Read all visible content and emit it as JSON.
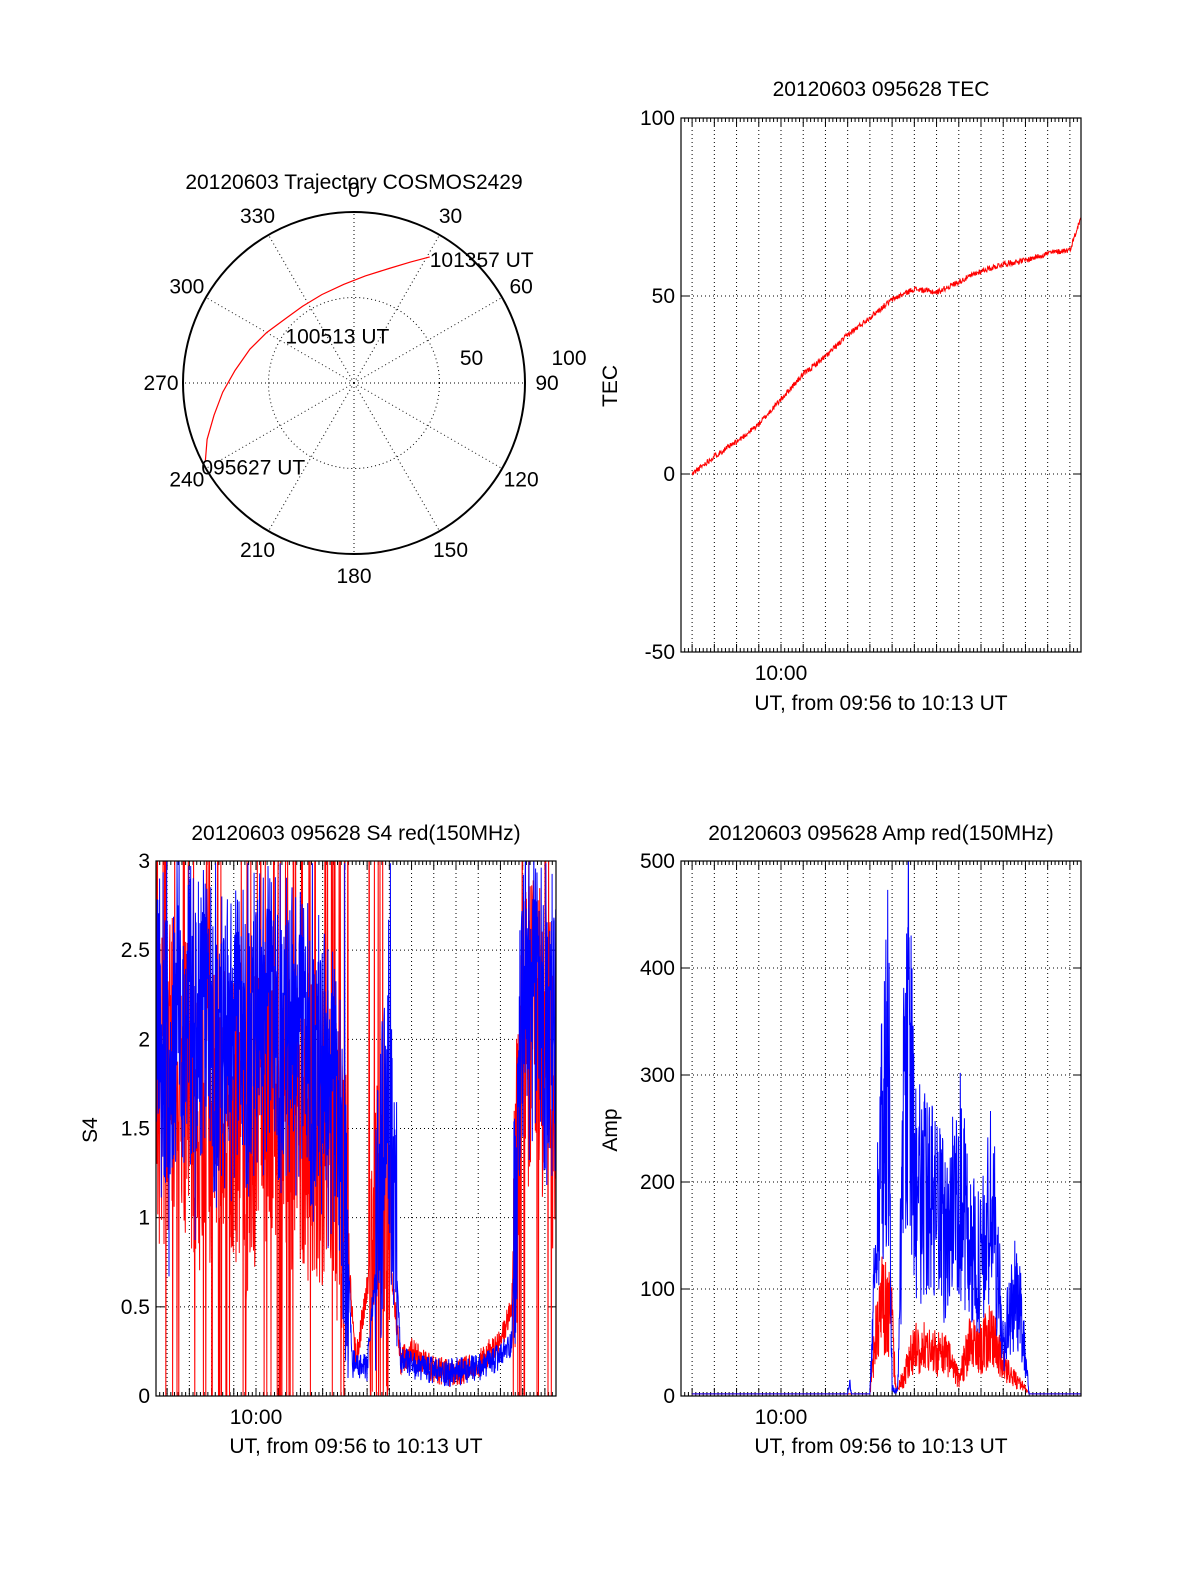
{
  "colors": {
    "red": "#ff0000",
    "blue": "#0000ff",
    "axes": "#000000"
  },
  "chart_data": [
    {
      "id": "trajectory",
      "type": "scatter",
      "subtype": "polar",
      "title": "20120603 Trajectory COSMOS2429",
      "azimuth_labels": [
        "0",
        "30",
        "60",
        "90",
        "120",
        "150",
        "180",
        "210",
        "240",
        "270",
        "300",
        "330"
      ],
      "radial_labels": [
        "50",
        "100"
      ],
      "grid": true,
      "series": [
        {
          "color": "#ff0000",
          "azimuth_deg": [
            242.5,
            249,
            257,
            266,
            276,
            288,
            300,
            313,
            326,
            340,
            354,
            6,
            17,
            25,
            31
          ],
          "zenith_deg": [
            98,
            92,
            84,
            77,
            70,
            64,
            59,
            55,
            54,
            55,
            58,
            63,
            70,
            78,
            86
          ]
        }
      ],
      "annotations": [
        {
          "text": "101357 UT",
          "azimuth_deg": 31,
          "zenith_deg": 86
        },
        {
          "text": "100513 UT",
          "azimuth_deg": 345,
          "zenith_deg": 42
        },
        {
          "text": "095627 UT",
          "azimuth_deg": 242.5,
          "zenith_deg": 98
        }
      ]
    },
    {
      "id": "tec",
      "type": "line",
      "title": "20120603 095628 TEC",
      "xlabel": "UT, from 09:56 to 10:13 UT",
      "ylabel": "TEC",
      "xlim": [
        "09:55:30",
        "10:13:30"
      ],
      "ylim": [
        -50,
        100
      ],
      "yticks": [
        -50,
        0,
        50,
        100
      ],
      "xtick_labels": [
        {
          "t": "10:00",
          "label": "10:00"
        }
      ],
      "grid": true,
      "series": [
        {
          "color": "#ff0000",
          "x": [
            "09:56:00",
            "09:57:00",
            "09:58:00",
            "09:59:00",
            "10:00:00",
            "10:01:00",
            "10:02:00",
            "10:03:00",
            "10:04:00",
            "10:05:00",
            "10:06:00",
            "10:07:00",
            "10:08:00",
            "10:09:00",
            "10:10:00",
            "10:11:00",
            "10:12:00",
            "10:13:00",
            "10:13:30"
          ],
          "y": [
            0,
            5,
            9,
            14,
            21,
            28,
            33,
            39,
            44,
            49,
            52,
            51,
            54,
            57,
            59,
            60,
            62,
            63,
            72
          ]
        }
      ]
    },
    {
      "id": "s4",
      "type": "line",
      "title": "20120603 095628 S4 red(150MHz)",
      "xlabel": "UT, from 09:56 to 10:13 UT",
      "ylabel": "S4",
      "xlim": [
        "09:55:30",
        "10:13:30"
      ],
      "ylim": [
        0,
        3
      ],
      "yticks": [
        0,
        0.5,
        1,
        1.5,
        2,
        2.5,
        3
      ],
      "ytick_labels": [
        "0",
        "0.5",
        "1",
        "1.5",
        "2",
        "2.5",
        "3"
      ],
      "xtick_labels": [
        {
          "t": "10:00",
          "label": "10:00"
        }
      ],
      "grid": true,
      "series": [
        {
          "color": "#ff0000",
          "x": [
            "09:55:30",
            "09:56:30",
            "09:57:30",
            "09:58:30",
            "09:59:30",
            "10:00:30",
            "10:01:30",
            "10:02:30",
            "10:03:30",
            "10:04:00",
            "10:04:30",
            "10:05:00",
            "10:05:30",
            "10:06:00",
            "10:06:30",
            "10:07:00",
            "10:08:00",
            "10:09:00",
            "10:10:00",
            "10:11:00",
            "10:11:30",
            "10:12:00",
            "10:13:00",
            "10:13:30"
          ],
          "y": [
            1.6,
            1.9,
            1.5,
            1.8,
            1.4,
            1.7,
            1.6,
            1.5,
            1.4,
            1.0,
            0.2,
            0.6,
            1.2,
            0.8,
            0.2,
            0.25,
            0.15,
            0.12,
            0.18,
            0.3,
            0.5,
            2.0,
            2.0,
            1.5
          ]
        },
        {
          "color": "#0000ff",
          "x": [
            "09:55:30",
            "09:56:30",
            "09:57:30",
            "09:58:30",
            "09:59:30",
            "10:00:30",
            "10:01:30",
            "10:02:30",
            "10:03:30",
            "10:04:00",
            "10:04:20",
            "10:05:00",
            "10:05:30",
            "10:06:00",
            "10:06:30",
            "10:07:30",
            "10:08:30",
            "10:09:30",
            "10:10:30",
            "10:11:00",
            "10:11:30",
            "10:12:00",
            "10:13:00",
            "10:13:30"
          ],
          "y": [
            2.0,
            2.2,
            2.1,
            1.9,
            2.0,
            2.1,
            2.0,
            1.9,
            1.6,
            1.2,
            0.18,
            0.15,
            0.9,
            1.8,
            0.2,
            0.15,
            0.13,
            0.14,
            0.18,
            0.22,
            0.3,
            2.2,
            2.1,
            2.0
          ]
        }
      ]
    },
    {
      "id": "amp",
      "type": "line",
      "title": "20120603 095628 Amp red(150MHz)",
      "xlabel": "UT, from 09:56 to 10:13 UT",
      "ylabel": "Amp",
      "xlim": [
        "09:55:30",
        "10:13:30"
      ],
      "ylim": [
        0,
        500
      ],
      "yticks": [
        0,
        100,
        200,
        300,
        400,
        500
      ],
      "xtick_labels": [
        {
          "t": "10:00",
          "label": "10:00"
        }
      ],
      "grid": true,
      "series": [
        {
          "color": "#ff0000",
          "x": [
            "09:56:00",
            "10:04:00",
            "10:04:10",
            "10:04:30",
            "10:05:00",
            "10:05:10",
            "10:05:30",
            "10:06:00",
            "10:06:30",
            "10:07:00",
            "10:07:30",
            "10:08:00",
            "10:08:30",
            "10:09:00",
            "10:09:30",
            "10:10:00",
            "10:10:30",
            "10:11:00",
            "10:11:10",
            "10:13:30"
          ],
          "y": [
            2,
            2,
            50,
            110,
            90,
            5,
            20,
            60,
            55,
            50,
            45,
            20,
            60,
            55,
            75,
            35,
            20,
            8,
            2,
            2
          ]
        },
        {
          "color": "#0000ff",
          "x": [
            "09:56:00",
            "10:03:00",
            "10:03:05",
            "10:03:10",
            "10:04:00",
            "10:04:10",
            "10:04:30",
            "10:04:50",
            "10:05:00",
            "10:05:15",
            "10:05:30",
            "10:05:45",
            "10:06:00",
            "10:06:30",
            "10:07:00",
            "10:07:30",
            "10:08:00",
            "10:08:30",
            "10:09:00",
            "10:09:30",
            "10:10:00",
            "10:10:30",
            "10:10:50",
            "10:11:10",
            "10:13:30"
          ],
          "y": [
            2,
            2,
            18,
            2,
            2,
            120,
            280,
            410,
            10,
            5,
            300,
            455,
            250,
            230,
            210,
            180,
            260,
            170,
            150,
            230,
            60,
            120,
            90,
            2,
            2
          ]
        }
      ]
    }
  ]
}
